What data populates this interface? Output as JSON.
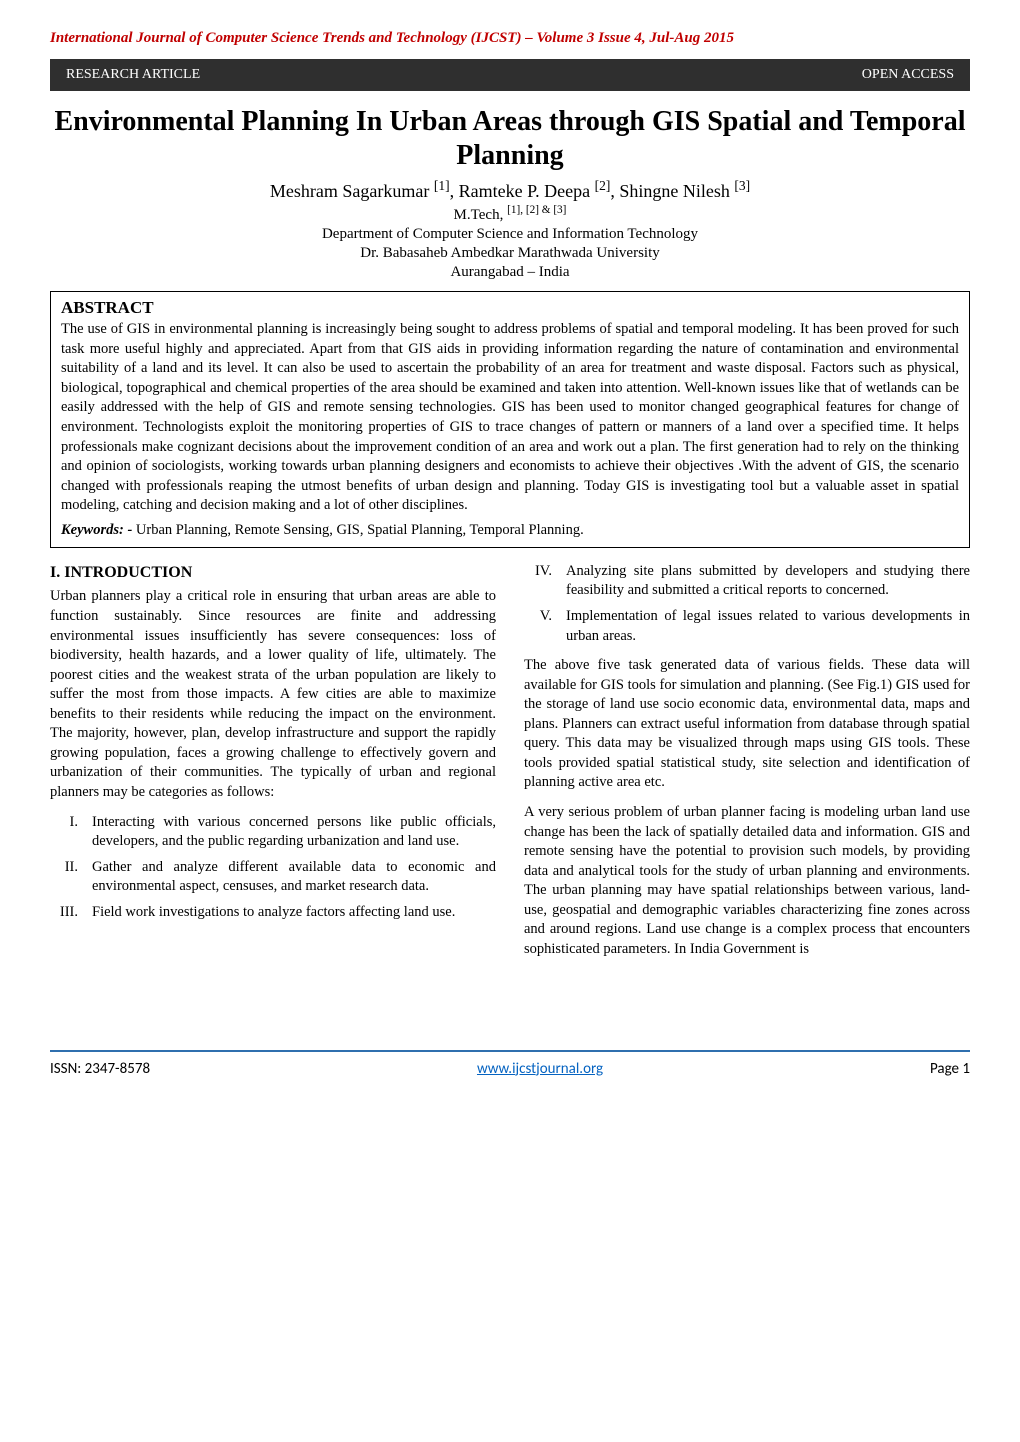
{
  "journal_header": "International Journal of Computer Science Trends and Technology (IJCST) – Volume 3 Issue 4, Jul-Aug 2015",
  "banner": {
    "left": "RESEARCH ARTICLE",
    "right": "OPEN ACCESS"
  },
  "title": "Environmental Planning In Urban Areas through GIS Spatial and Temporal Planning",
  "authors_html": "Meshram Sagarkumar [1], Ramteke P. Deepa [2], Shingne Nilesh [3]",
  "degree_line": "M.Tech, [1], [2] & [3]",
  "dept": "Department of Computer Science and Information Technology",
  "univ": "Dr. Babasaheb Ambedkar Marathwada University",
  "city": "Aurangabad – India",
  "abstract_heading": "ABSTRACT",
  "abstract_text": "The use of GIS in environmental planning is increasingly being sought to address problems of spatial and temporal modeling. It has been proved for such task more useful highly and appreciated. Apart from that GIS aids in providing information regarding the nature of contamination and environmental suitability of a land and its level. It can also be used to ascertain the probability of an area for treatment and waste disposal. Factors such as physical, biological, topographical and chemical properties of the area should be examined and taken into attention. Well-known issues like that of wetlands can be easily addressed with the help of GIS and remote sensing technologies. GIS has been used to monitor changed geographical features for change of environment. Technologists exploit the monitoring properties of GIS to trace changes of pattern or manners of a land over a specified time. It helps professionals make cognizant decisions about the improvement condition of an area and work out a plan. The first generation had to rely on the thinking and opinion of sociologists, working towards urban planning designers and economists to achieve their objectives .With the advent of GIS, the scenario changed with professionals reaping the utmost benefits of urban design and planning. Today GIS is investigating tool but a valuable asset in spatial modeling, catching and decision making and a lot of other disciplines.",
  "keywords_label": "Keywords: -",
  "keywords_text": " Urban Planning, Remote Sensing, GIS, Spatial Planning, Temporal Planning.",
  "intro_heading": "I. INTRODUCTION",
  "intro_p1": "Urban planners play a critical role in ensuring that urban areas are able to function sustainably. Since resources are finite and addressing environmental issues insufficiently has severe consequences: loss of biodiversity, health hazards, and a lower quality of life, ultimately. The poorest cities and the weakest strata of the urban population are likely to suffer the most from those impacts. A few cities are able to maximize benefits to their residents while reducing the impact on the environment. The majority, however, plan, develop infrastructure and support the rapidly growing population, faces a growing challenge to effectively govern and urbanization of their communities. The typically of urban and regional planners may be categories as follows:",
  "left_list": [
    {
      "num": "I.",
      "txt": "Interacting with various concerned persons like public officials, developers, and the public regarding urbanization and land use."
    },
    {
      "num": "II.",
      "txt": "Gather and analyze different available data to economic and environmental aspect, censuses, and market research data."
    },
    {
      "num": "III.",
      "txt": "Field work investigations to analyze factors affecting land use."
    }
  ],
  "right_list": [
    {
      "num": "IV.",
      "txt": "Analyzing site plans submitted by developers and studying there feasibility and submitted a critical reports to concerned."
    },
    {
      "num": "V.",
      "txt": "Implementation of legal issues related to various developments in urban areas."
    }
  ],
  "right_p1": "The above five task generated data of various fields. These data will available for GIS tools for simulation and planning. (See Fig.1) GIS used for the storage of land use socio economic data, environmental data, maps and plans. Planners can extract useful information from database through spatial query. This data may be visualized through maps using GIS tools. These tools provided spatial statistical study, site selection and identification of planning active area etc.",
  "right_p2": "A very serious problem of urban planner facing is modeling urban land use change has been the lack of spatially detailed data and information. GIS and remote sensing have the potential to provision such models, by providing data and analytical tools for the study of urban planning and environments. The urban planning may have spatial relationships between various, land-use, geospatial and demographic variables characterizing fine zones across and around regions. Land use change is a complex process that encounters sophisticated parameters. In India Government is",
  "footer": {
    "issn": "ISSN: 2347-8578",
    "url": "www.ijcstjournal.org",
    "page": "Page 1"
  },
  "colors": {
    "journal_header": "#c00000",
    "banner_bg": "#2f2f2f",
    "banner_text": "#ffffff",
    "border": "#000000",
    "footer_rule": "#2f6fae",
    "link": "#0563c1"
  }
}
